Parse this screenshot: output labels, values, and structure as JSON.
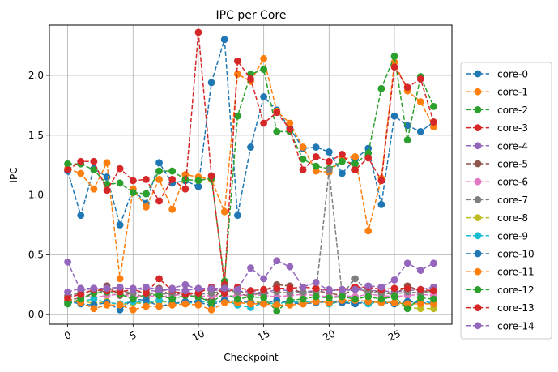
{
  "chart_data": {
    "type": "line",
    "title": "IPC per Core",
    "xlabel": "Checkpoint",
    "ylabel": "IPC",
    "xlim": [
      -1.4,
      29.4
    ],
    "ylim": [
      -0.08,
      2.42
    ],
    "xticks": [
      0,
      5,
      10,
      15,
      20,
      25
    ],
    "xtick_labels": [
      "0",
      "5",
      "10",
      "15",
      "20",
      "25"
    ],
    "yticks": [
      0.0,
      0.5,
      1.0,
      1.5,
      2.0
    ],
    "ytick_labels": [
      "0.0",
      "0.5",
      "1.0",
      "1.5",
      "2.0"
    ],
    "grid": true,
    "legend_position": "right",
    "x": [
      0,
      1,
      2,
      3,
      4,
      5,
      6,
      7,
      8,
      9,
      10,
      11,
      12,
      13,
      14,
      15,
      16,
      17,
      18,
      19,
      20,
      21,
      22,
      23,
      24,
      25,
      26,
      27,
      28
    ],
    "series": [
      {
        "name": "core-0",
        "color": "#1f77b4",
        "values": [
          1.2,
          0.83,
          1.22,
          1.15,
          0.75,
          1.05,
          0.93,
          1.27,
          1.1,
          1.12,
          1.07,
          1.94,
          2.3,
          0.83,
          1.4,
          1.82,
          1.71,
          1.56,
          1.39,
          1.4,
          1.36,
          1.18,
          1.3,
          1.39,
          0.92,
          1.66,
          1.58,
          1.53,
          1.61
        ]
      },
      {
        "name": "core-1",
        "color": "#ff7f0e",
        "values": [
          1.22,
          1.18,
          1.05,
          1.27,
          0.3,
          1.05,
          0.9,
          1.13,
          0.88,
          1.17,
          1.15,
          1.13,
          0.86,
          2.01,
          1.95,
          2.14,
          1.7,
          1.6,
          1.4,
          1.2,
          1.19,
          1.3,
          1.32,
          0.7,
          1.14,
          2.11,
          1.87,
          1.78,
          1.57
        ]
      },
      {
        "name": "core-2",
        "color": "#2ca02c",
        "values": [
          1.26,
          1.26,
          1.21,
          1.09,
          1.1,
          1.02,
          1.01,
          1.2,
          1.2,
          1.13,
          1.12,
          1.14,
          0.28,
          1.66,
          2.01,
          2.05,
          1.53,
          1.53,
          1.3,
          1.24,
          1.22,
          1.28,
          1.26,
          1.35,
          1.89,
          2.16,
          1.46,
          1.99,
          1.74
        ]
      },
      {
        "name": "core-3",
        "color": "#d62728",
        "values": [
          1.21,
          1.28,
          1.28,
          1.04,
          1.22,
          1.12,
          1.13,
          0.95,
          1.13,
          1.05,
          2.36,
          1.16,
          0.25,
          2.12,
          1.97,
          1.6,
          1.69,
          1.55,
          1.21,
          1.32,
          1.28,
          1.34,
          1.21,
          1.31,
          1.12,
          2.07,
          1.9,
          1.97,
          1.61
        ]
      },
      {
        "name": "core-4",
        "color": "#9467bd",
        "values": [
          0.44,
          0.2,
          0.22,
          0.21,
          0.22,
          0.22,
          0.21,
          0.19,
          0.22,
          0.25,
          0.21,
          0.2,
          0.21,
          0.19,
          0.2,
          0.18,
          0.21,
          0.2,
          0.19,
          0.2,
          0.21,
          0.2,
          0.21,
          0.2,
          0.2,
          0.19,
          0.2,
          0.21,
          0.23
        ]
      },
      {
        "name": "core-5",
        "color": "#8c564b",
        "values": [
          0.12,
          0.14,
          0.18,
          0.24,
          0.16,
          0.18,
          0.14,
          0.22,
          0.15,
          0.2,
          0.14,
          0.12,
          0.23,
          0.18,
          0.15,
          0.2,
          0.25,
          0.24,
          0.17,
          0.2,
          0.18,
          0.16,
          0.22,
          0.19,
          0.2,
          0.17,
          0.24,
          0.2,
          0.19
        ]
      },
      {
        "name": "core-6",
        "color": "#e377c2",
        "values": [
          0.15,
          0.17,
          0.14,
          0.16,
          0.17,
          0.15,
          0.16,
          0.15,
          0.16,
          0.17,
          0.15,
          0.16,
          0.15,
          0.16,
          0.17,
          0.16,
          0.15,
          0.16,
          0.17,
          0.16,
          0.15,
          0.16,
          0.15,
          0.17,
          0.16,
          0.15,
          0.16,
          0.17,
          0.16
        ]
      },
      {
        "name": "core-7",
        "color": "#7f7f7f",
        "values": [
          0.16,
          0.18,
          0.2,
          0.19,
          0.2,
          0.18,
          0.19,
          0.17,
          0.18,
          0.19,
          0.17,
          0.18,
          0.2,
          0.19,
          0.18,
          0.17,
          0.19,
          0.18,
          0.19,
          0.18,
          1.21,
          0.17,
          0.3,
          0.19,
          0.18,
          0.17,
          0.19,
          0.18,
          0.2
        ]
      },
      {
        "name": "core-8",
        "color": "#bcbd22",
        "values": [
          0.1,
          0.12,
          0.09,
          0.11,
          0.08,
          0.1,
          0.09,
          0.11,
          0.1,
          0.09,
          0.11,
          0.1,
          0.12,
          0.09,
          0.11,
          0.1,
          0.09,
          0.11,
          0.1,
          0.12,
          0.09,
          0.11,
          0.1,
          0.09,
          0.11,
          0.1,
          0.06,
          0.05,
          0.05
        ]
      },
      {
        "name": "core-9",
        "color": "#17becf",
        "values": [
          0.09,
          0.11,
          0.13,
          0.1,
          0.09,
          0.11,
          0.1,
          0.12,
          0.1,
          0.09,
          0.11,
          0.1,
          0.12,
          0.08,
          0.06,
          0.1,
          0.09,
          0.11,
          0.1,
          0.12,
          0.09,
          0.11,
          0.1,
          0.09,
          0.11,
          0.1,
          0.09,
          0.11,
          0.1
        ]
      },
      {
        "name": "core-10",
        "color": "#1f77b4",
        "values": [
          0.11,
          0.09,
          0.08,
          0.1,
          0.04,
          0.13,
          0.12,
          0.07,
          0.09,
          0.11,
          0.1,
          0.08,
          0.12,
          0.11,
          0.1,
          0.09,
          0.12,
          0.1,
          0.09,
          0.1,
          0.11,
          0.1,
          0.09,
          0.11,
          0.1,
          0.09,
          0.11,
          0.1,
          0.09
        ]
      },
      {
        "name": "core-11",
        "color": "#ff7f0e",
        "values": [
          0.13,
          0.1,
          0.05,
          0.08,
          0.08,
          0.04,
          0.07,
          0.07,
          0.08,
          0.09,
          0.08,
          0.04,
          0.1,
          0.1,
          0.09,
          0.09,
          0.08,
          0.08,
          0.09,
          0.11,
          0.1,
          0.12,
          0.12,
          0.11,
          0.1,
          0.1,
          0.09,
          0.09,
          0.09
        ]
      },
      {
        "name": "core-12",
        "color": "#2ca02c",
        "values": [
          0.09,
          0.13,
          0.18,
          0.19,
          0.17,
          0.13,
          0.17,
          0.16,
          0.13,
          0.16,
          0.15,
          0.1,
          0.18,
          0.13,
          0.15,
          0.14,
          0.03,
          0.12,
          0.13,
          0.15,
          0.14,
          0.15,
          0.13,
          0.15,
          0.13,
          0.15,
          0.05,
          0.14,
          0.13
        ]
      },
      {
        "name": "core-13",
        "color": "#d62728",
        "values": [
          0.14,
          0.17,
          0.21,
          0.2,
          0.19,
          0.21,
          0.18,
          0.3,
          0.2,
          0.17,
          0.18,
          0.23,
          0.18,
          0.23,
          0.2,
          0.21,
          0.22,
          0.22,
          0.23,
          0.22,
          0.2,
          0.21,
          0.23,
          0.23,
          0.21,
          0.22,
          0.22,
          0.21,
          0.2
        ]
      },
      {
        "name": "core-14",
        "color": "#9467bd",
        "values": [
          0.19,
          0.22,
          0.22,
          0.22,
          0.23,
          0.21,
          0.23,
          0.21,
          0.21,
          0.2,
          0.22,
          0.22,
          0.22,
          0.21,
          0.39,
          0.3,
          0.45,
          0.4,
          0.23,
          0.27,
          0.2,
          0.21,
          0.21,
          0.24,
          0.23,
          0.29,
          0.43,
          0.37,
          0.43
        ]
      }
    ]
  }
}
